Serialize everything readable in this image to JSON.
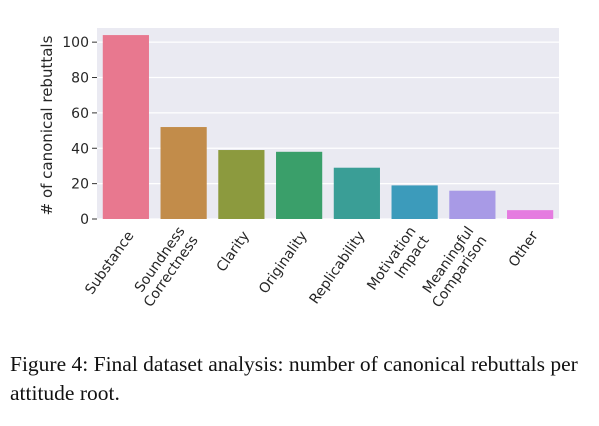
{
  "chart_data": {
    "type": "bar",
    "categories": [
      [
        "Substance"
      ],
      [
        "Soundness",
        "Correctness"
      ],
      [
        "Clarity"
      ],
      [
        "Originality"
      ],
      [
        "Replicability"
      ],
      [
        "Motivation",
        "Impact"
      ],
      [
        "Meaningful",
        "Comparison"
      ],
      [
        "Other"
      ]
    ],
    "values": [
      104,
      52,
      39,
      38,
      29,
      19,
      16,
      5
    ],
    "colors": [
      "#e8788f",
      "#c28c4a",
      "#8c9a3e",
      "#3a9f6a",
      "#3a9e96",
      "#3c9bbb",
      "#a89ae6",
      "#e57be0"
    ],
    "xlabel": "",
    "ylabel": "# of canonical rebuttals",
    "yticks": [
      0,
      20,
      40,
      60,
      80,
      100
    ],
    "ylim": [
      0,
      108
    ],
    "grid": "horizontal",
    "background": "#eaeaf2"
  },
  "caption": {
    "text": "Figure 4: Final dataset analysis: number of canonical rebuttals per attitude root."
  }
}
